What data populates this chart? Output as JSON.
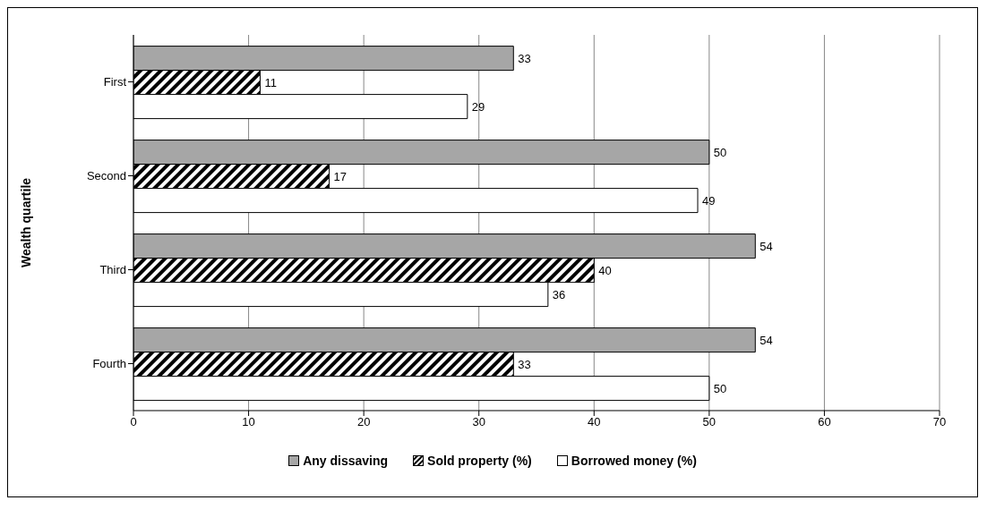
{
  "chart_data": {
    "type": "bar",
    "orientation": "horizontal",
    "ylabel": "Wealth quartile",
    "categories": [
      "First",
      "Second",
      "Third",
      "Fourth"
    ],
    "series": [
      {
        "name": "Any dissaving",
        "color": "#a6a6a6",
        "values": [
          33,
          50,
          54,
          54
        ]
      },
      {
        "name": "Sold property (%)",
        "color": "#000000",
        "values": [
          11,
          17,
          40,
          33
        ]
      },
      {
        "name": "Borrowed money (%)",
        "color": "#ffffff",
        "values": [
          29,
          49,
          36,
          50
        ]
      }
    ],
    "xlim": [
      0,
      70
    ],
    "xticks": [
      0,
      10,
      20,
      30,
      40,
      50,
      60,
      70
    ],
    "grid": "x",
    "legend": "bottom",
    "data_labels": true
  }
}
